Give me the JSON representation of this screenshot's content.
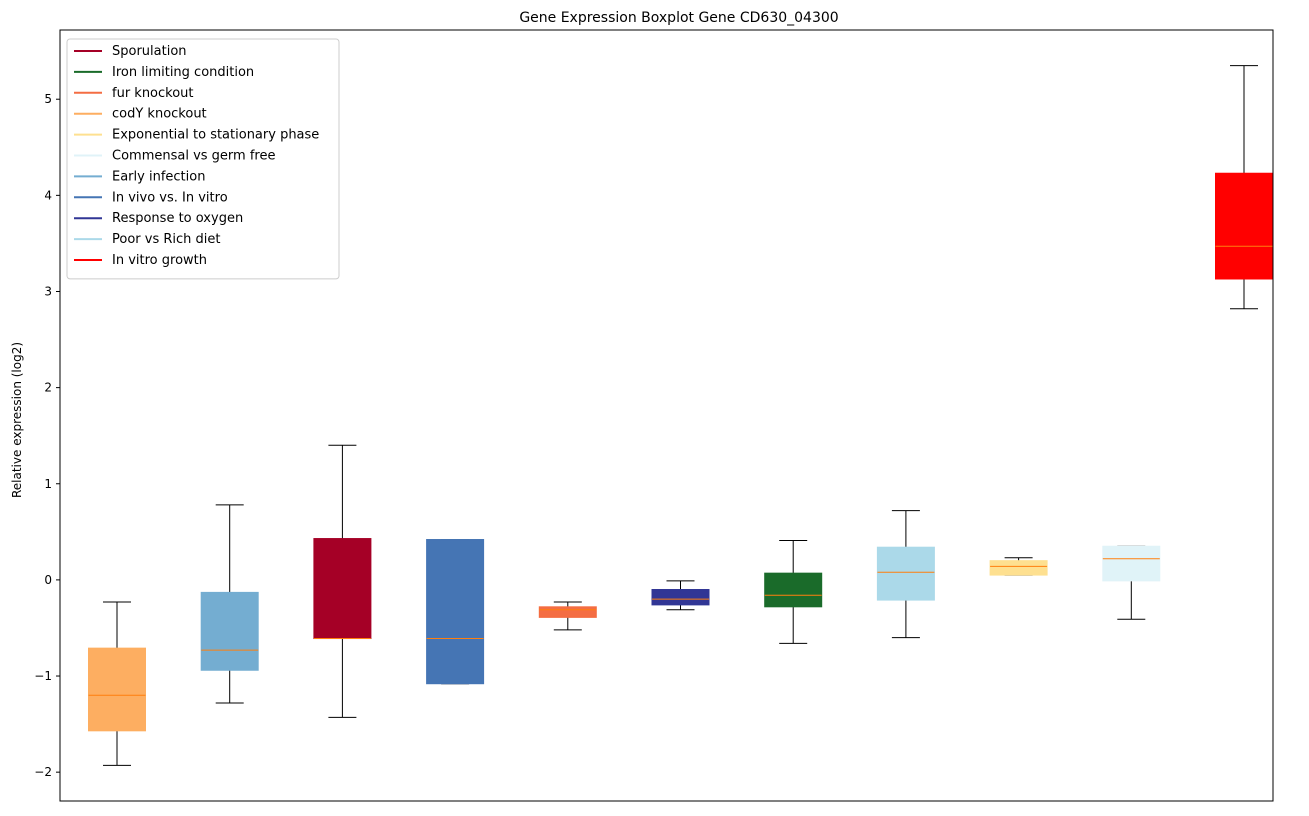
{
  "chart_data": {
    "type": "box",
    "title": "Gene Expression Boxplot Gene CD630_04300",
    "ylabel": "Relative expression (log2)",
    "xlabel": "",
    "ylim": [
      -2.3,
      5.72
    ],
    "yticks": [
      -2,
      -1,
      0,
      1,
      2,
      3,
      4,
      5
    ],
    "ytick_labels": [
      "−2",
      "−1",
      "0",
      "1",
      "2",
      "3",
      "4",
      "5"
    ],
    "grid": false,
    "legend_position": "top-left",
    "median_color": "#ff7f0e",
    "legend": [
      {
        "label": "Sporulation",
        "color": "#a50026"
      },
      {
        "label": "Iron limiting condition",
        "color": "#1a6b2a"
      },
      {
        "label": "fur knockout",
        "color": "#f46d43"
      },
      {
        "label": "codY knockout",
        "color": "#fdae61"
      },
      {
        "label": "Exponential to stationary phase",
        "color": "#fee090"
      },
      {
        "label": "Commensal vs germ free",
        "color": "#e0f3f8"
      },
      {
        "label": "Early infection",
        "color": "#74add1"
      },
      {
        "label": "In vivo vs. In vitro",
        "color": "#4575b4"
      },
      {
        "label": "Response to oxygen",
        "color": "#313695"
      },
      {
        "label": "Poor vs Rich diet",
        "color": "#abd9e9"
      },
      {
        "label": "In vitro growth",
        "color": "#ff0000"
      }
    ],
    "boxes": [
      {
        "group": "codY knockout",
        "color": "#fdae61",
        "whisker_low": -1.93,
        "q1": -1.57,
        "median": -1.2,
        "q3": -0.71,
        "whisker_high": -0.23
      },
      {
        "group": "Early infection",
        "color": "#74add1",
        "whisker_low": -1.28,
        "q1": -0.94,
        "median": -0.73,
        "q3": -0.13,
        "whisker_high": 0.78
      },
      {
        "group": "Sporulation",
        "color": "#a50026",
        "whisker_low": -1.43,
        "q1": -0.61,
        "median": -0.61,
        "q3": 0.43,
        "whisker_high": 1.4
      },
      {
        "group": "In vivo vs. In vitro",
        "color": "#4575b4",
        "whisker_low": -1.08,
        "q1": -1.08,
        "median": -0.61,
        "q3": 0.42,
        "whisker_high": 0.42
      },
      {
        "group": "fur knockout",
        "color": "#f46d43",
        "whisker_low": -0.52,
        "q1": -0.39,
        "median": -0.31,
        "q3": -0.28,
        "whisker_high": -0.23
      },
      {
        "group": "Response to oxygen",
        "color": "#313695",
        "whisker_low": -0.31,
        "q1": -0.26,
        "median": -0.2,
        "q3": -0.1,
        "whisker_high": -0.01
      },
      {
        "group": "Iron limiting condition",
        "color": "#1a6b2a",
        "whisker_low": -0.66,
        "q1": -0.28,
        "median": -0.16,
        "q3": 0.07,
        "whisker_high": 0.41
      },
      {
        "group": "Poor vs Rich diet",
        "color": "#abd9e9",
        "whisker_low": -0.6,
        "q1": -0.21,
        "median": 0.08,
        "q3": 0.34,
        "whisker_high": 0.72
      },
      {
        "group": "Exponential to stationary phase",
        "color": "#fee090",
        "whisker_low": 0.05,
        "q1": 0.05,
        "median": 0.14,
        "q3": 0.2,
        "whisker_high": 0.23
      },
      {
        "group": "Commensal vs germ free",
        "color": "#e0f3f8",
        "whisker_low": -0.41,
        "q1": -0.01,
        "median": 0.22,
        "q3": 0.35,
        "whisker_high": 0.35
      },
      {
        "group": "In vitro growth",
        "color": "#ff0000",
        "whisker_low": 2.82,
        "q1": 3.13,
        "median": 3.47,
        "q3": 4.23,
        "whisker_high": 5.35
      }
    ]
  }
}
